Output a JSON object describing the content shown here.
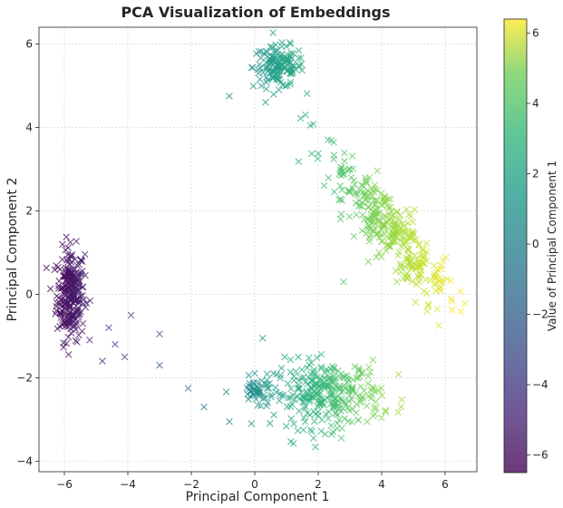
{
  "chart_data": {
    "type": "scatter",
    "title": "PCA Visualization of Embeddings",
    "xlabel": "Principal Component 1",
    "ylabel": "Principal Component 2",
    "xlim": [
      -6.8,
      7.0
    ],
    "ylim": [
      -4.25,
      6.4
    ],
    "xticks": [
      -6,
      -4,
      -2,
      0,
      2,
      4,
      6
    ],
    "yticks": [
      -4,
      -2,
      0,
      2,
      4,
      6
    ],
    "grid": true,
    "marker": "x",
    "colormap": "viridis",
    "colorbar": {
      "label": "Value of Principal Component 1",
      "range": [
        -6.5,
        6.4
      ],
      "ticks": [
        -6,
        -4,
        -2,
        0,
        2,
        4,
        6
      ]
    },
    "clusters": [
      {
        "center": [
          -5.8,
          0.0
        ],
        "spread": [
          0.22,
          0.55
        ],
        "count": 260
      },
      {
        "center": [
          0.75,
          5.45
        ],
        "spread": [
          0.4,
          0.25
        ],
        "count": 150
      },
      {
        "center": [
          4.2,
          1.6
        ],
        "spread": [
          0.55,
          0.75
        ],
        "count": 340
      },
      {
        "center": [
          2.3,
          -2.4
        ],
        "spread": [
          0.85,
          0.4
        ],
        "count": 300
      },
      {
        "center": [
          0.1,
          -2.3
        ],
        "spread": [
          0.25,
          0.15
        ],
        "count": 50
      }
    ],
    "outliers": [
      [
        -3.0,
        -0.95
      ],
      [
        -3.0,
        -1.7
      ],
      [
        -2.1,
        -2.25
      ],
      [
        -1.6,
        -2.7
      ],
      [
        -0.8,
        -3.05
      ],
      [
        -4.4,
        -1.2
      ],
      [
        -4.8,
        -1.6
      ],
      [
        -3.9,
        -0.5
      ],
      [
        -4.1,
        -1.5
      ],
      [
        -4.6,
        -0.8
      ],
      [
        0.25,
        -1.05
      ],
      [
        -0.8,
        4.75
      ],
      [
        1.75,
        4.05
      ],
      [
        1.6,
        4.3
      ],
      [
        3.0,
        3.0
      ],
      [
        2.8,
        0.3
      ],
      [
        5.8,
        -0.75
      ],
      [
        2.7,
        1.8
      ]
    ]
  }
}
